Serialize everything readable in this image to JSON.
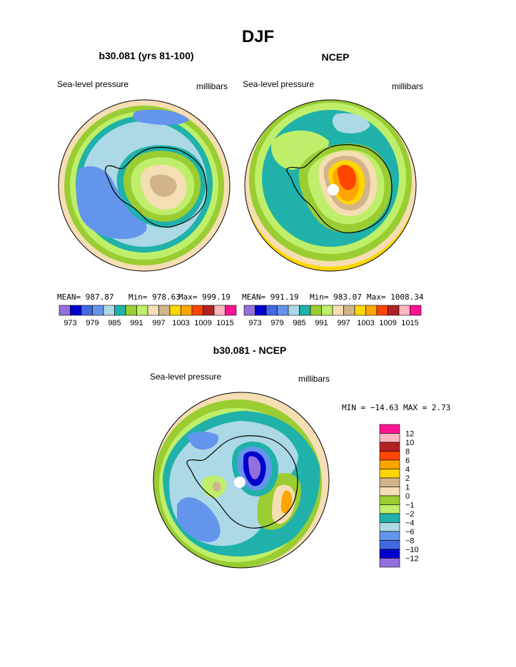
{
  "title": "DJF",
  "colors": {
    "abs_palette": [
      "#9370db",
      "#0000cd",
      "#4169e1",
      "#6495ed",
      "#add8e6",
      "#20b2aa",
      "#9acd32",
      "#bfef6a",
      "#f5deb3",
      "#d2b48c",
      "#ffd700",
      "#ffa500",
      "#ff4500",
      "#b22222",
      "#ffb6c1",
      "#ff1493"
    ],
    "diff_palette": [
      "#9370db",
      "#0000cd",
      "#4169e1",
      "#6495ed",
      "#add8e6",
      "#20b2aa",
      "#bfef6a",
      "#9acd32",
      "#f5deb3",
      "#d2b48c",
      "#ffd700",
      "#ffa500",
      "#ff4500",
      "#b22222",
      "#ffb6c1",
      "#ff1493"
    ]
  },
  "panels": {
    "model": {
      "title": "b30.081 (yrs 81-100)",
      "left_label": "Sea-level pressure",
      "right_label": "millibars",
      "mean": "MEAN= 987.87",
      "min": "Min= 978.63",
      "max": "Max= 999.19"
    },
    "ncep": {
      "title": "NCEP",
      "left_label": "Sea-level pressure",
      "right_label": "millibars",
      "mean": "MEAN= 991.19",
      "min": "Min= 983.07",
      "max": "Max= 1008.34"
    },
    "diff": {
      "title": "b30.081 - NCEP",
      "left_label": "Sea-level pressure",
      "right_label": "millibars",
      "minmax": "MIN = −14.63 MAX =    2.73"
    }
  },
  "chart_data": [
    {
      "type": "heatmap",
      "title": "b30.081 (yrs 81-100)",
      "variable": "Sea-level pressure",
      "units": "millibars",
      "projection": "south polar stereographic",
      "stats": {
        "mean": 987.87,
        "min": 978.63,
        "max": 999.19
      },
      "contour_levels": [
        973,
        976,
        979,
        982,
        985,
        988,
        991,
        994,
        997,
        1000,
        1003,
        1006,
        1009,
        1012,
        1015
      ],
      "colorbar_tick_labels": [
        "973",
        "979",
        "985",
        "991",
        "997",
        "1003",
        "1009",
        "1015"
      ]
    },
    {
      "type": "heatmap",
      "title": "NCEP",
      "variable": "Sea-level pressure",
      "units": "millibars",
      "projection": "south polar stereographic",
      "stats": {
        "mean": 991.19,
        "min": 983.07,
        "max": 1008.34
      },
      "contour_levels": [
        973,
        976,
        979,
        982,
        985,
        988,
        991,
        994,
        997,
        1000,
        1003,
        1006,
        1009,
        1012,
        1015
      ],
      "colorbar_tick_labels": [
        "973",
        "979",
        "985",
        "991",
        "997",
        "1003",
        "1009",
        "1015"
      ]
    },
    {
      "type": "heatmap",
      "title": "b30.081 - NCEP",
      "variable": "Sea-level pressure",
      "units": "millibars",
      "projection": "south polar stereographic",
      "stats": {
        "min": -14.63,
        "max": 2.73
      },
      "contour_levels": [
        -12,
        -10,
        -8,
        -6,
        -4,
        -2,
        -1,
        0,
        1,
        2,
        4,
        6,
        8,
        10,
        12
      ],
      "colorbar_tick_labels": [
        "12",
        "10",
        "8",
        "6",
        "4",
        "2",
        "1",
        "0",
        "−1",
        "−2",
        "−4",
        "−6",
        "−8",
        "−10",
        "−12"
      ]
    }
  ]
}
